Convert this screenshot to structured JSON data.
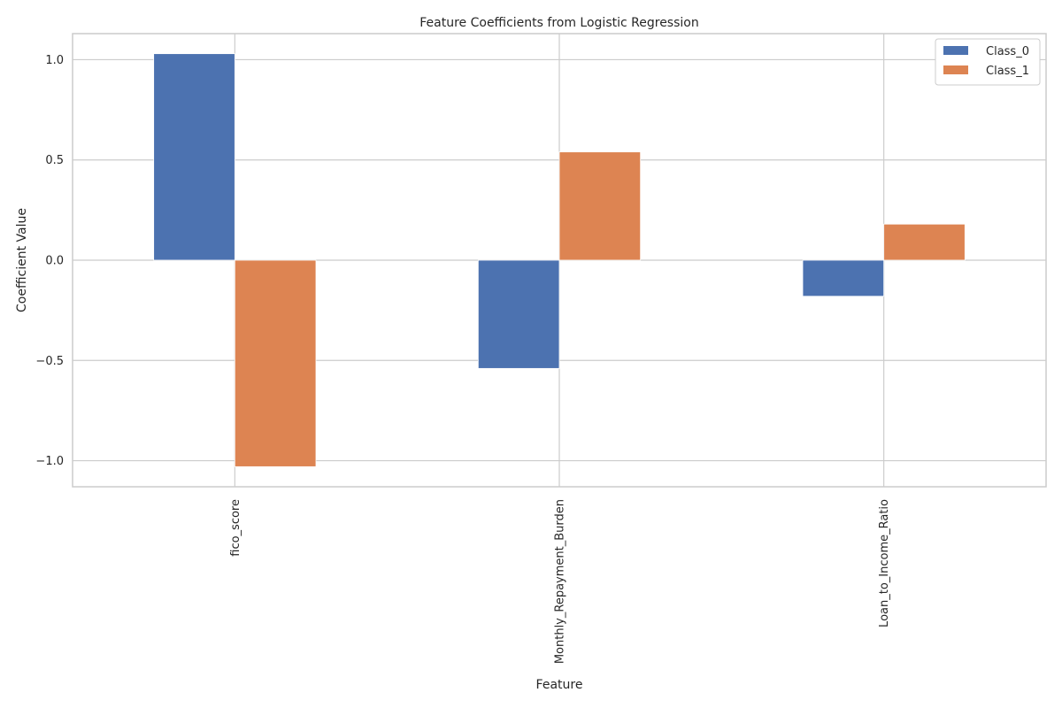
{
  "chart_data": {
    "type": "bar",
    "title": "Feature Coefficients from Logistic Regression",
    "xlabel": "Feature",
    "ylabel": "Coefficient Value",
    "categories": [
      "fico_score",
      "Monthly_Repayment_Burden",
      "Loan_to_Income_Ratio"
    ],
    "series": [
      {
        "name": "Class_0",
        "color": "#4c72b0",
        "values": [
          1.03,
          -0.54,
          -0.18
        ]
      },
      {
        "name": "Class_1",
        "color": "#dd8452",
        "values": [
          -1.03,
          0.54,
          0.18
        ]
      }
    ],
    "ylim": [
      -1.13,
      1.13
    ],
    "yticks": [
      1.0,
      0.5,
      0.0,
      -0.5,
      -1.0
    ],
    "ytick_labels": [
      "1.0",
      "0.5",
      "0.0",
      "−0.5",
      "−1.0"
    ],
    "grid": true,
    "legend_position": "top-right"
  }
}
